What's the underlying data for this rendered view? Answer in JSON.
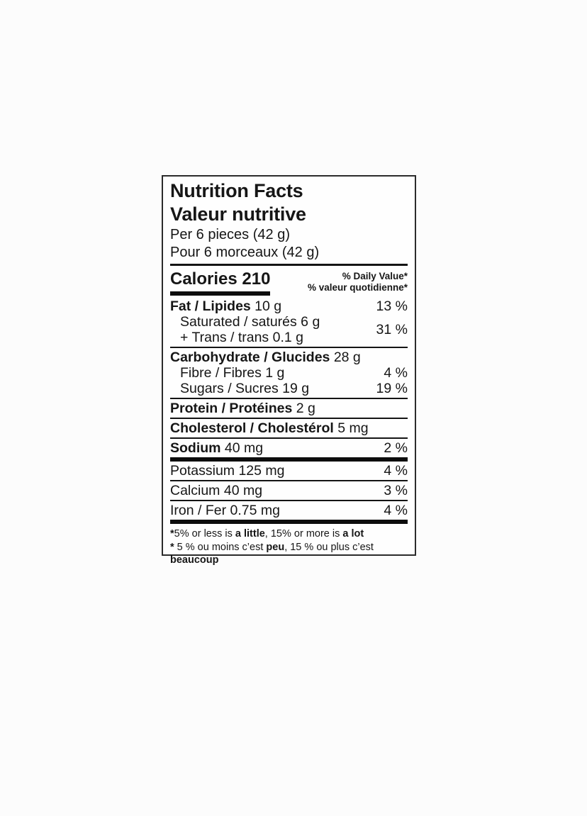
{
  "label": {
    "title_en": "Nutrition Facts",
    "title_fr": "Valeur nutritive",
    "serving_en": "Per 6 pieces (42 g)",
    "serving_fr": "Pour 6 morceaux (42 g)",
    "calories_text": "Calories 210",
    "dv_header_en": "% Daily Value*",
    "dv_header_fr": "% valeur quotidienne*",
    "rows": {
      "fat": {
        "name": "Fat / Lipides",
        "amount": " 10 g",
        "dv": "13 %"
      },
      "saturated": {
        "name": "Saturated / saturés 6 g"
      },
      "trans": {
        "name": "+ Trans / trans 0.1 g"
      },
      "sat_trans_dv": "31 %",
      "carbohydrate": {
        "name": "Carbohydrate / Glucides",
        "amount": " 28 g",
        "dv": ""
      },
      "fibre": {
        "name": "Fibre / Fibres",
        "amount": " 1 g",
        "dv": "4 %"
      },
      "sugars": {
        "name": "Sugars / Sucres",
        "amount": " 19 g",
        "dv": "19 %"
      },
      "protein": {
        "name": "Protein / Protéines",
        "amount": " 2 g",
        "dv": ""
      },
      "cholesterol": {
        "name": "Cholesterol / Cholestérol",
        "amount": " 5 mg",
        "dv": ""
      },
      "sodium": {
        "name": "Sodium",
        "amount": " 40 mg",
        "dv": "2 %"
      },
      "potassium": {
        "name": "Potassium",
        "amount": " 125 mg",
        "dv": "4 %"
      },
      "calcium": {
        "name": "Calcium",
        "amount": " 40 mg",
        "dv": "3 %"
      },
      "iron": {
        "name": "Iron / Fer",
        "amount": " 0.75 mg",
        "dv": "4 %"
      }
    },
    "footnote_en": {
      "star": "*",
      "p1": "5% or less is ",
      "b1": "a little",
      "p2": ", 15% or more is ",
      "b2": "a lot"
    },
    "footnote_fr": {
      "star": "* ",
      "p1": "5 % ou moins c’est ",
      "b1": "peu",
      "p2": ", 15 % ou plus c’est ",
      "b2": "beaucoup"
    }
  },
  "colors": {
    "text": "#161616",
    "rule": "#141414",
    "background": "#fcfcfc",
    "label_bg": "#fefefe"
  }
}
